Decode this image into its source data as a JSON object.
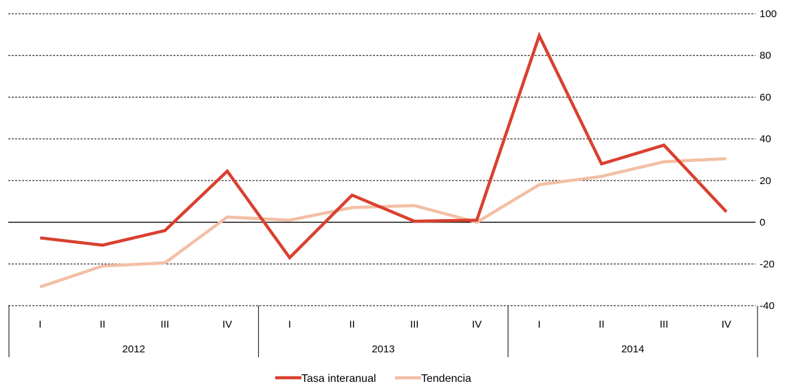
{
  "chart_data": {
    "type": "line",
    "quarters": [
      "I",
      "II",
      "III",
      "IV",
      "I",
      "II",
      "III",
      "IV",
      "I",
      "II",
      "III",
      "IV"
    ],
    "years": [
      "2012",
      "2013",
      "2014"
    ],
    "ylim": [
      -40,
      100
    ],
    "yticks": [
      100,
      80,
      60,
      40,
      20,
      0,
      -20,
      -40
    ],
    "grid": true,
    "legend_position": "bottom-center",
    "series": [
      {
        "name": "Tasa interanual",
        "color": "#d9402f",
        "values": [
          -7.5,
          -11,
          -4,
          24.5,
          -17,
          13,
          0.5,
          1,
          89.5,
          28,
          37,
          5
        ]
      },
      {
        "name": "Tendencia",
        "color": "#f2bfa5",
        "values": [
          -31,
          -21,
          -19.5,
          2.5,
          1,
          7,
          8,
          0,
          18,
          22,
          29,
          30.5
        ]
      }
    ]
  }
}
